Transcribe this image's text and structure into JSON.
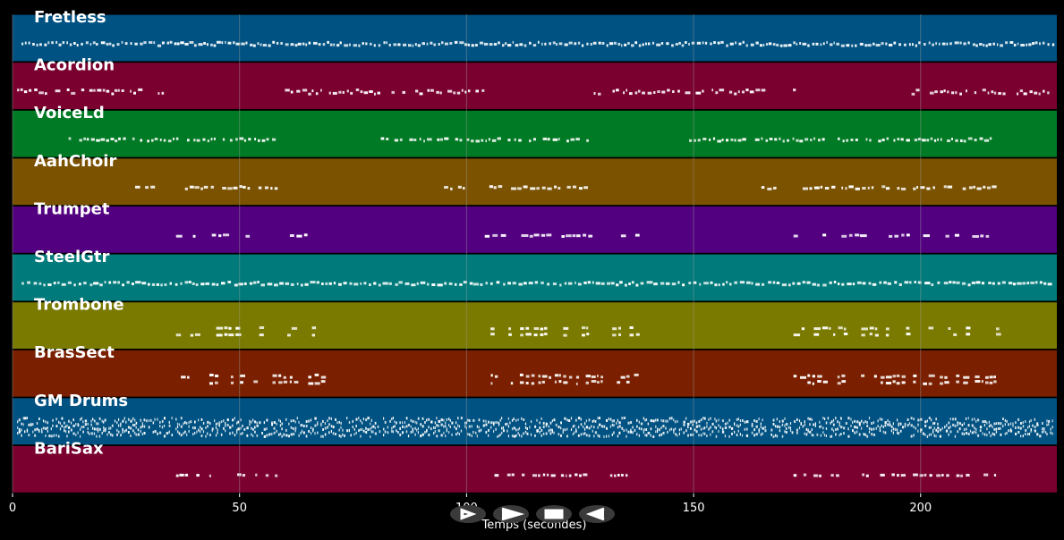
{
  "colors": {
    "background": "#000000",
    "note": "#ffffff",
    "grid": "#9a9a9a"
  },
  "chart_data": {
    "type": "piano-roll",
    "xlabel": "Temps (secondes)",
    "xlim": [
      0,
      230
    ],
    "xticks": [
      0,
      50,
      100,
      150,
      200
    ],
    "tracks": [
      {
        "name": "Fretless",
        "color": "#005282",
        "segments": [
          [
            2,
            229
          ]
        ],
        "density": 1.0,
        "pitch_spread": 0.28,
        "lanes": 1,
        "note_len": 0.7
      },
      {
        "name": "Acordion",
        "color": "#7a0030",
        "segments": [
          [
            1,
            28
          ],
          [
            32,
            35
          ],
          [
            60,
            84
          ],
          [
            85,
            96
          ],
          [
            97,
            104
          ],
          [
            128,
            152
          ],
          [
            154,
            165
          ],
          [
            170,
            173
          ],
          [
            198,
            200
          ],
          [
            202,
            229
          ]
        ],
        "density": 0.75,
        "pitch_spread": 0.35,
        "lanes": 1,
        "note_len": 0.8
      },
      {
        "name": "VoiceLd",
        "color": "#007a24",
        "segments": [
          [
            11,
            58
          ],
          [
            80,
            127
          ],
          [
            149,
            216
          ]
        ],
        "density": 0.85,
        "pitch_spread": 0.22,
        "lanes": 1,
        "note_len": 0.8
      },
      {
        "name": "AahChoir",
        "color": "#7a5200",
        "segments": [
          [
            27,
            32
          ],
          [
            37,
            58
          ],
          [
            95,
            100
          ],
          [
            105,
            127
          ],
          [
            164,
            168
          ],
          [
            174,
            216
          ]
        ],
        "density": 0.8,
        "pitch_spread": 0.2,
        "lanes": 1,
        "note_len": 0.9
      },
      {
        "name": "Trumpet",
        "color": "#520080",
        "segments": [
          [
            36,
            68
          ],
          [
            104,
            128
          ],
          [
            134,
            138
          ],
          [
            172,
            217
          ]
        ],
        "density": 0.55,
        "pitch_spread": 0.12,
        "lanes": 1,
        "note_len": 1.1
      },
      {
        "name": "SteelGtr",
        "color": "#007a7a",
        "segments": [
          [
            2,
            229
          ]
        ],
        "density": 1.0,
        "pitch_spread": 0.25,
        "lanes": 1,
        "note_len": 0.9
      },
      {
        "name": "Trombone",
        "color": "#7a7a00",
        "segments": [
          [
            36,
            68
          ],
          [
            104,
            138
          ],
          [
            172,
            217
          ]
        ],
        "density": 0.55,
        "pitch_spread": 0.12,
        "lanes": 2,
        "note_len": 1.1
      },
      {
        "name": "BrasSect",
        "color": "#7a2000",
        "segments": [
          [
            36,
            68
          ],
          [
            104,
            138
          ],
          [
            172,
            217
          ]
        ],
        "density": 0.7,
        "pitch_spread": 0.22,
        "lanes": 2,
        "note_len": 1.0
      },
      {
        "name": "GM Drums",
        "color": "#005282",
        "segments": [
          [
            1,
            229
          ]
        ],
        "density": 1.0,
        "pitch_spread": 0.5,
        "lanes": 3,
        "note_len": 0.35
      },
      {
        "name": "BariSax",
        "color": "#7a0030",
        "segments": [
          [
            36,
            58
          ],
          [
            104,
            138
          ],
          [
            172,
            217
          ]
        ],
        "density": 0.6,
        "pitch_spread": 0.1,
        "lanes": 1,
        "note_len": 0.9
      }
    ]
  },
  "controls": [
    {
      "name": "play-button",
      "icon": "play-outline-icon"
    },
    {
      "name": "forward-button",
      "icon": "chevron-right-icon"
    },
    {
      "name": "stop-button",
      "icon": "stop-icon"
    },
    {
      "name": "back-button",
      "icon": "chevron-left-icon"
    }
  ]
}
